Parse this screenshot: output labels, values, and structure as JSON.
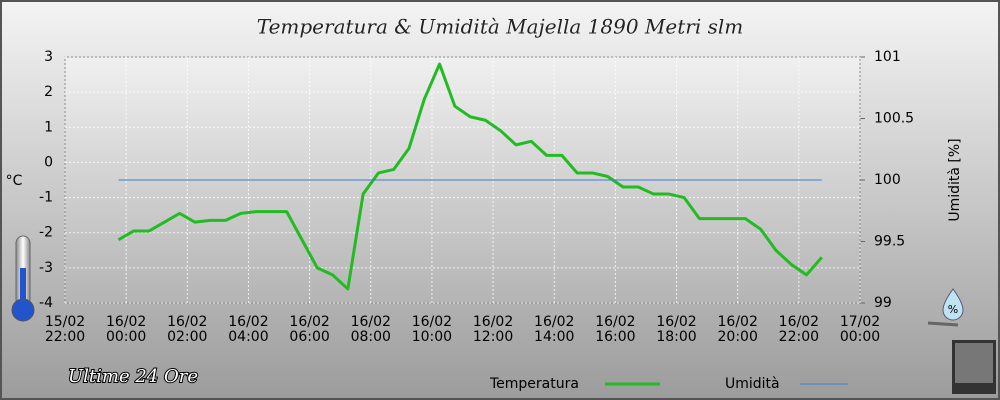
{
  "chart_data": {
    "type": "line",
    "title": "Temperatura & Umidità Majella 1890 Metri slm",
    "subtitle": "Ultime 24 Ore",
    "y_label": "°C",
    "y2_label": "Umidità [%]",
    "x": [
      "15/02 23:45",
      "16/02 00:15",
      "16/02 00:45",
      "16/02 01:15",
      "16/02 01:45",
      "16/02 02:15",
      "16/02 02:45",
      "16/02 03:15",
      "16/02 03:45",
      "16/02 04:15",
      "16/02 04:45",
      "16/02 05:15",
      "16/02 05:45",
      "16/02 06:15",
      "16/02 06:45",
      "16/02 07:15",
      "16/02 07:45",
      "16/02 08:15",
      "16/02 08:45",
      "16/02 09:15",
      "16/02 09:45",
      "16/02 10:15",
      "16/02 10:45",
      "16/02 11:15",
      "16/02 11:45",
      "16/02 12:15",
      "16/02 12:45",
      "16/02 13:15",
      "16/02 13:45",
      "16/02 14:15",
      "16/02 14:45",
      "16/02 15:15",
      "16/02 15:45",
      "16/02 16:15",
      "16/02 16:45",
      "16/02 17:15",
      "16/02 17:45",
      "16/02 18:15",
      "16/02 18:45",
      "16/02 19:15",
      "16/02 19:45",
      "16/02 20:15",
      "16/02 20:45",
      "16/02 21:15",
      "16/02 21:45",
      "16/02 22:15",
      "16/02 22:45"
    ],
    "series": [
      {
        "name": "Temperatura",
        "color": "#22bb22",
        "values": [
          -2.2,
          -1.95,
          -1.95,
          -1.7,
          -1.45,
          -1.7,
          -1.65,
          -1.65,
          -1.45,
          -1.4,
          -1.4,
          -1.4,
          -2.2,
          -3.0,
          -3.2,
          -3.6,
          -0.9,
          -0.3,
          -0.2,
          0.4,
          1.8,
          2.8,
          1.6,
          1.3,
          1.2,
          0.9,
          0.5,
          0.6,
          0.2,
          0.2,
          -0.3,
          -0.3,
          -0.4,
          -0.7,
          -0.7,
          -0.9,
          -0.9,
          -1.0,
          -1.6,
          -1.6,
          -1.6,
          -1.6,
          -1.9,
          -2.5,
          -2.9,
          -3.2,
          -2.7
        ]
      },
      {
        "name": "Umidità",
        "color": "#3a7fd0",
        "axis": "y2",
        "values": [
          100,
          100,
          100,
          100,
          100,
          100,
          100,
          100,
          100,
          100,
          100,
          100,
          100,
          100,
          100,
          100,
          100,
          100,
          100,
          100,
          100,
          100,
          100,
          100,
          100,
          100,
          100,
          100,
          100,
          100,
          100,
          100,
          100,
          100,
          100,
          100,
          100,
          100,
          100,
          100,
          100,
          100,
          100,
          100,
          100,
          100,
          100
        ]
      }
    ],
    "xlim": [
      "15/02 22:00",
      "17/02 00:00"
    ],
    "xticks": [
      "15/02 22:00",
      "16/02 00:00",
      "16/02 02:00",
      "16/02 04:00",
      "16/02 06:00",
      "16/02 08:00",
      "16/02 10:00",
      "16/02 12:00",
      "16/02 14:00",
      "16/02 16:00",
      "16/02 18:00",
      "16/02 20:00",
      "16/02 22:00",
      "17/02 00:00"
    ],
    "ylim": [
      -4,
      3
    ],
    "yticks": [
      -4,
      -3,
      -2,
      -1,
      0,
      1,
      2,
      3
    ],
    "y2lim": [
      99,
      101
    ],
    "y2ticks": [
      99,
      99.5,
      100,
      100.5,
      101
    ],
    "grid": true
  }
}
